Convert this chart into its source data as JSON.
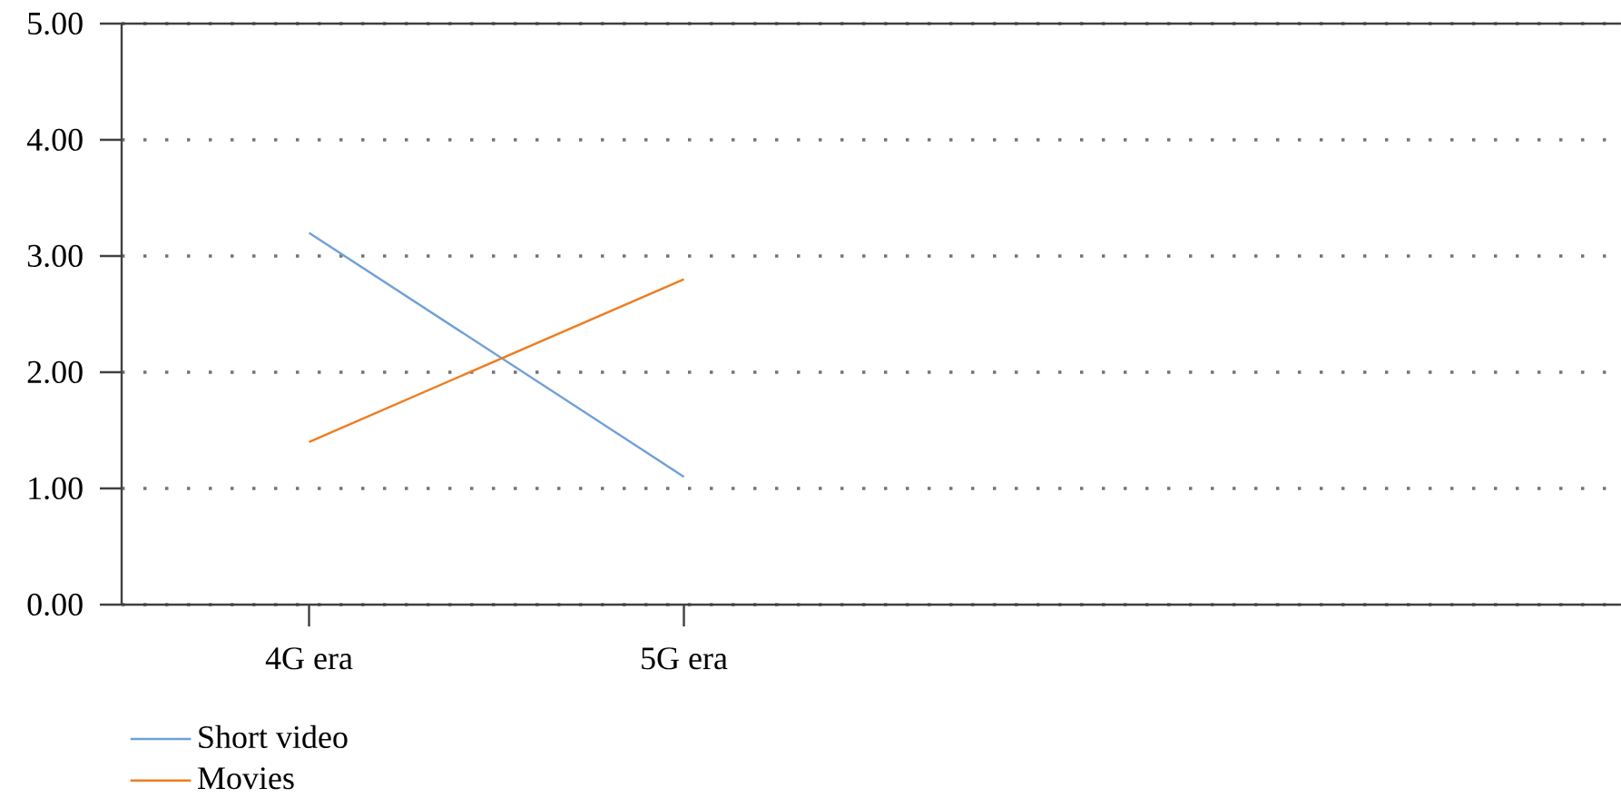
{
  "chart_data": {
    "type": "line",
    "categories": [
      "4G era",
      "5G era",
      null,
      null
    ],
    "series": [
      {
        "name": "Short video",
        "color": "#6fa0d8",
        "values": [
          3.2,
          1.1,
          null,
          null
        ]
      },
      {
        "name": "Movies",
        "color": "#ee7d22",
        "values": [
          1.4,
          2.8,
          null,
          null
        ]
      }
    ],
    "ylim": [
      0,
      5
    ],
    "yticks": [
      {
        "value": 0,
        "label": "0.00"
      },
      {
        "value": 1,
        "label": "1.00"
      },
      {
        "value": 2,
        "label": "2.00"
      },
      {
        "value": 3,
        "label": "3.00"
      },
      {
        "value": 4,
        "label": "4.00"
      },
      {
        "value": 5,
        "label": "5.00"
      }
    ],
    "grid": "y",
    "legend": "bottom left",
    "marker": "none",
    "line_style": "solid"
  }
}
